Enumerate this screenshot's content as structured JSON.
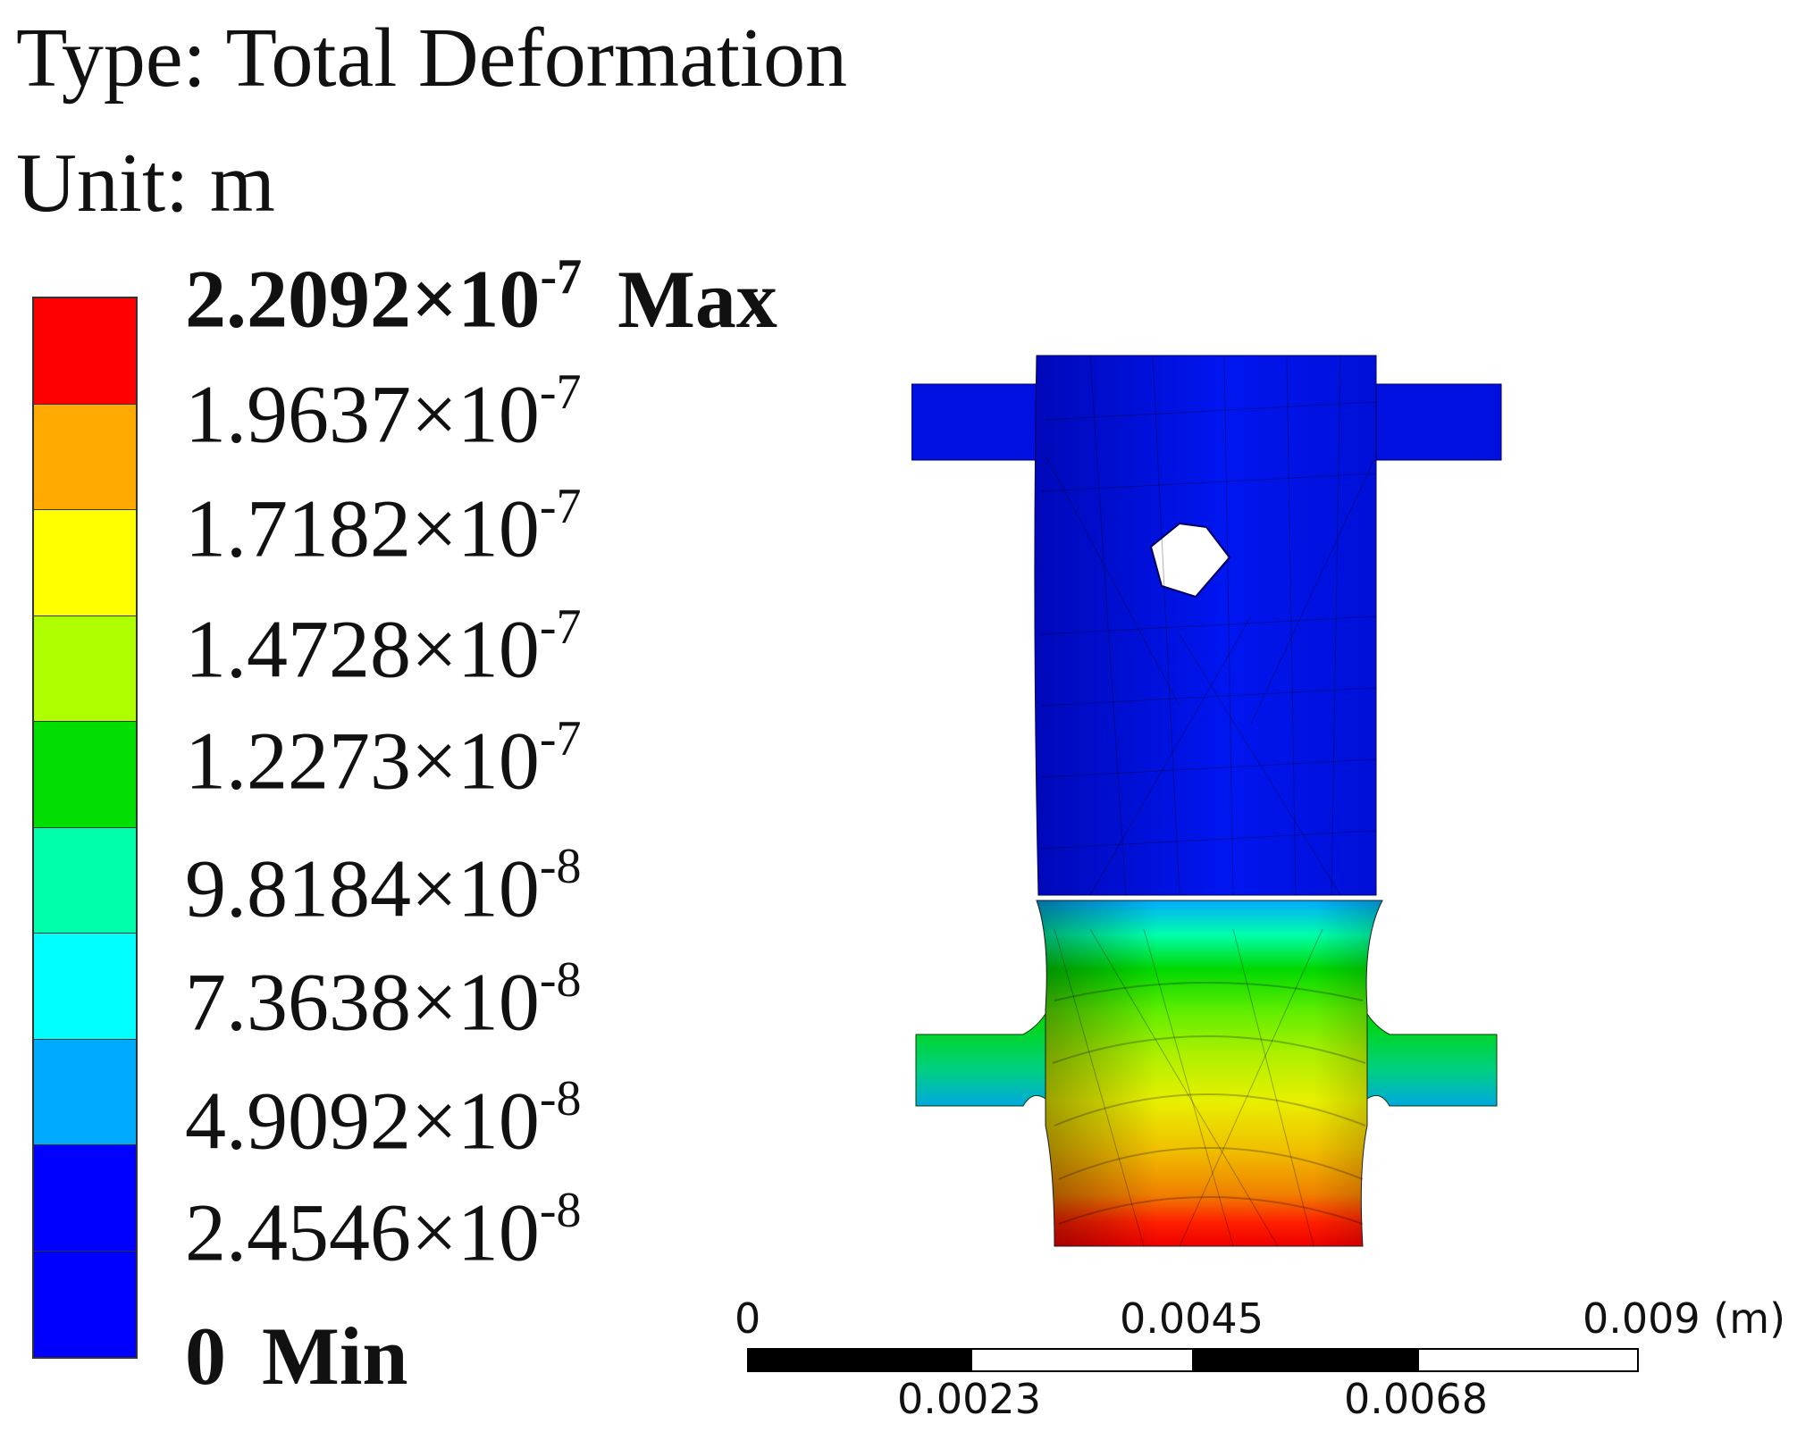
{
  "header": {
    "type_label": "Type: Total Deformation",
    "unit_label": "Unit: m"
  },
  "legend": {
    "colors": [
      "#ff0000",
      "#ffaa00",
      "#ffff00",
      "#b0ff00",
      "#00dd00",
      "#00ffaa",
      "#00ffff",
      "#00aaff",
      "#0000ff"
    ],
    "levels": [
      {
        "mantissa": "2.2092",
        "times": "×10",
        "exp": "-7",
        "tag": "Max"
      },
      {
        "mantissa": "1.9637",
        "times": "×10",
        "exp": "-7",
        "tag": ""
      },
      {
        "mantissa": "1.7182",
        "times": "×10",
        "exp": "-7",
        "tag": ""
      },
      {
        "mantissa": "1.4728",
        "times": "×10",
        "exp": "-7",
        "tag": ""
      },
      {
        "mantissa": "1.2273",
        "times": "×10",
        "exp": "-7",
        "tag": ""
      },
      {
        "mantissa": "9.8184",
        "times": "×10",
        "exp": "-8",
        "tag": ""
      },
      {
        "mantissa": "7.3638",
        "times": "×10",
        "exp": "-8",
        "tag": ""
      },
      {
        "mantissa": "4.9092",
        "times": "×10",
        "exp": "-8",
        "tag": ""
      },
      {
        "mantissa": "2.4546",
        "times": "×10",
        "exp": "-8",
        "tag": ""
      },
      {
        "mantissa": "0",
        "times": "",
        "exp": "",
        "tag": "Min"
      }
    ]
  },
  "scale": {
    "top_labels": [
      "0",
      "0.0045",
      "0.009 (m)"
    ],
    "bottom_labels": [
      "0.0023",
      "0.0068"
    ]
  }
}
